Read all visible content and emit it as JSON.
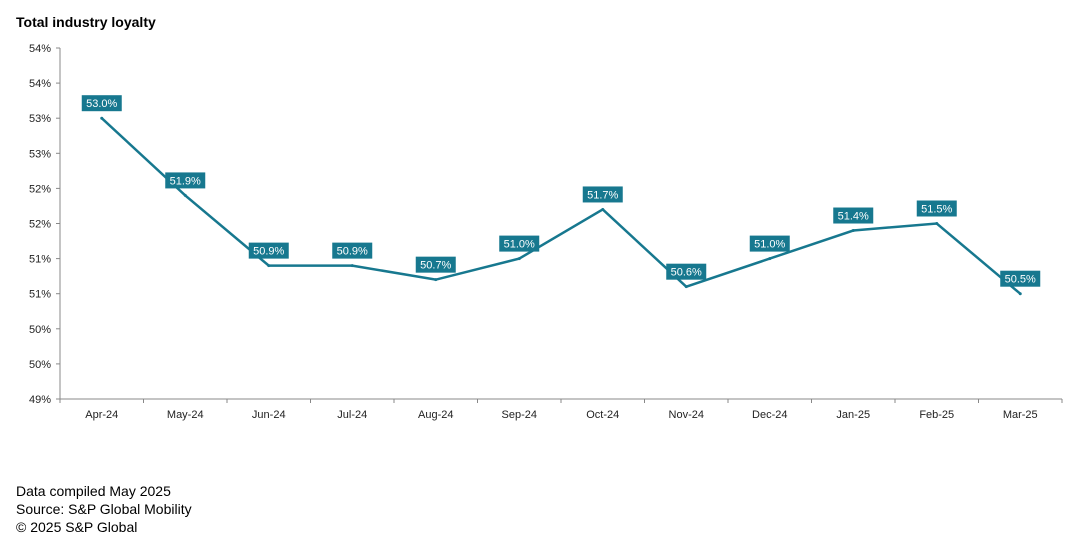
{
  "chart_data": {
    "type": "line",
    "title": "Total industry loyalty",
    "xlabel": "",
    "ylabel": "",
    "categories": [
      "Apr-24",
      "May-24",
      "Jun-24",
      "Jul-24",
      "Aug-24",
      "Sep-24",
      "Oct-24",
      "Nov-24",
      "Dec-24",
      "Jan-25",
      "Feb-25",
      "Mar-25"
    ],
    "series": [
      {
        "name": "Total industry loyalty",
        "values": [
          53.0,
          51.9,
          50.9,
          50.9,
          50.7,
          51.0,
          51.7,
          50.6,
          51.0,
          51.4,
          51.5,
          50.5
        ],
        "labels": [
          "53.0%",
          "51.9%",
          "50.9%",
          "50.9%",
          "50.7%",
          "51.0%",
          "51.7%",
          "50.6%",
          "51.0%",
          "51.4%",
          "51.5%",
          "50.5%"
        ]
      }
    ],
    "ylim": [
      49,
      54
    ],
    "yticks": [
      49,
      49.5,
      50,
      50.5,
      51,
      51.5,
      52,
      52.5,
      53,
      53.5,
      54
    ],
    "ytick_labels": [
      "49%",
      "50%",
      "50%",
      "51%",
      "51%",
      "52%",
      "52%",
      "53%",
      "53%",
      "54%",
      "54%"
    ],
    "grid": false,
    "colors": {
      "line": "#17788f",
      "label_bg": "#17788f",
      "label_text": "#ffffff",
      "axis": "#888888"
    }
  },
  "footer": {
    "compiled": "Data compiled May 2025",
    "source": "Source: S&P Global Mobility",
    "copyright": "© 2025 S&P Global"
  }
}
